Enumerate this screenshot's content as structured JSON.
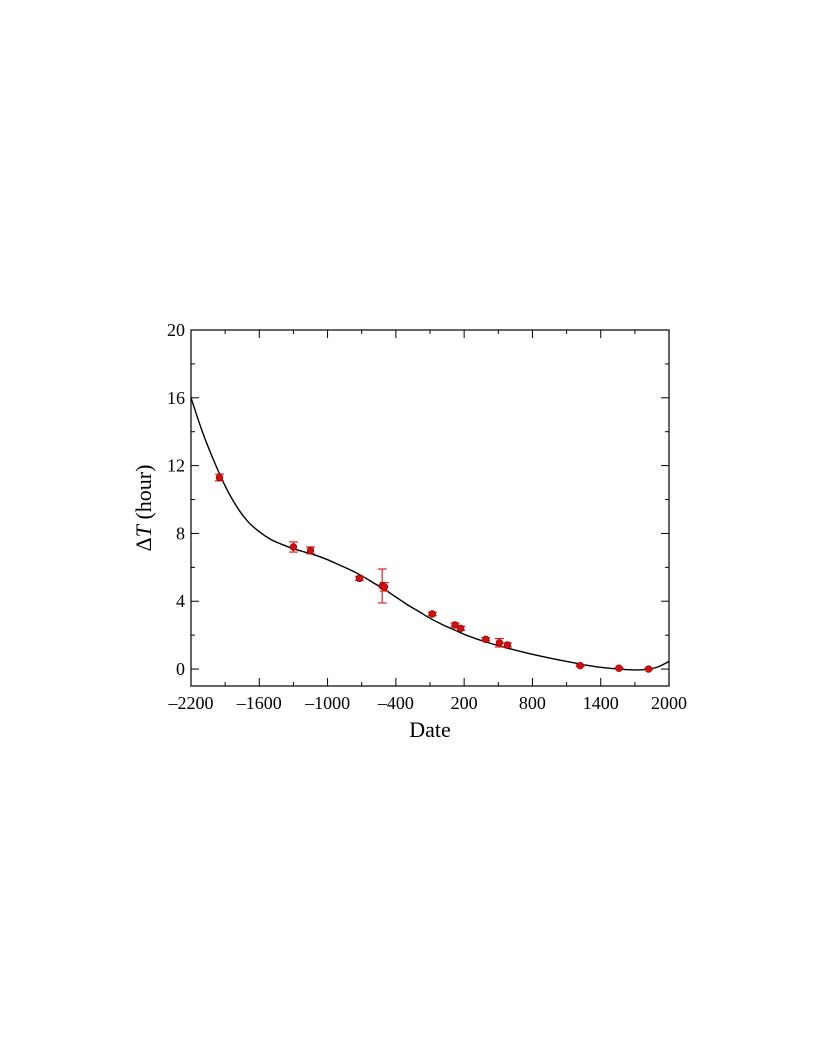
{
  "chart_data": {
    "type": "scatter",
    "title": "",
    "xlabel": "Date",
    "ylabel_prefix": "Δ",
    "ylabel_var": "T",
    "ylabel_unit": " (hour)",
    "xlim": [
      -2200,
      2000
    ],
    "ylim": [
      -1,
      20
    ],
    "xticks": [
      -2200,
      -1600,
      -1000,
      -400,
      200,
      800,
      1400,
      2000
    ],
    "xtick_labels": [
      "–2200",
      "–1600",
      "–1000",
      "–400",
      "200",
      "800",
      "1400",
      "2000"
    ],
    "yticks": [
      0,
      4,
      8,
      12,
      16,
      20
    ],
    "ytick_labels": [
      "0",
      "4",
      "8",
      "12",
      "16",
      "20"
    ],
    "grid": false,
    "marker_color": "#cc1111",
    "errorbar_color": "#dd2222",
    "curve_color": "#000000",
    "points": [
      {
        "x": -1950,
        "y": 11.3,
        "err": 0.2
      },
      {
        "x": -1300,
        "y": 7.2,
        "err": 0.3
      },
      {
        "x": -1150,
        "y": 7.0,
        "err": 0.2
      },
      {
        "x": -720,
        "y": 5.35,
        "err": 0.12
      },
      {
        "x": -520,
        "y": 4.9,
        "err": 1.0
      },
      {
        "x": -500,
        "y": 4.85,
        "err": 0.25
      },
      {
        "x": -80,
        "y": 3.25,
        "err": 0.1
      },
      {
        "x": 120,
        "y": 2.6,
        "err": 0.12
      },
      {
        "x": 170,
        "y": 2.4,
        "err": 0.12
      },
      {
        "x": 390,
        "y": 1.75,
        "err": 0.1
      },
      {
        "x": 510,
        "y": 1.55,
        "err": 0.25
      },
      {
        "x": 580,
        "y": 1.42,
        "err": 0.12
      },
      {
        "x": 1220,
        "y": 0.2,
        "err": 0.05
      },
      {
        "x": 1560,
        "y": 0.05,
        "err": 0.03
      },
      {
        "x": 1820,
        "y": 0.0,
        "err": 0.03
      }
    ],
    "fit_curve": {
      "x": [
        -2200,
        -2100,
        -2000,
        -1900,
        -1800,
        -1700,
        -1600,
        -1500,
        -1400,
        -1300,
        -1200,
        -1100,
        -1000,
        -900,
        -800,
        -700,
        -600,
        -500,
        -400,
        -300,
        -200,
        -100,
        0,
        100,
        200,
        300,
        400,
        500,
        600,
        700,
        800,
        900,
        1000,
        1100,
        1200,
        1300,
        1400,
        1500,
        1600,
        1700,
        1800,
        1900,
        2000
      ],
      "y": [
        16.0,
        14.0,
        12.3,
        10.8,
        9.6,
        8.7,
        8.1,
        7.65,
        7.35,
        7.1,
        6.9,
        6.7,
        6.45,
        6.15,
        5.85,
        5.5,
        5.1,
        4.7,
        4.25,
        3.8,
        3.4,
        3.0,
        2.65,
        2.35,
        2.05,
        1.8,
        1.58,
        1.38,
        1.2,
        1.03,
        0.87,
        0.72,
        0.58,
        0.45,
        0.32,
        0.2,
        0.1,
        0.03,
        -0.02,
        -0.05,
        -0.02,
        0.12,
        0.45
      ]
    }
  }
}
